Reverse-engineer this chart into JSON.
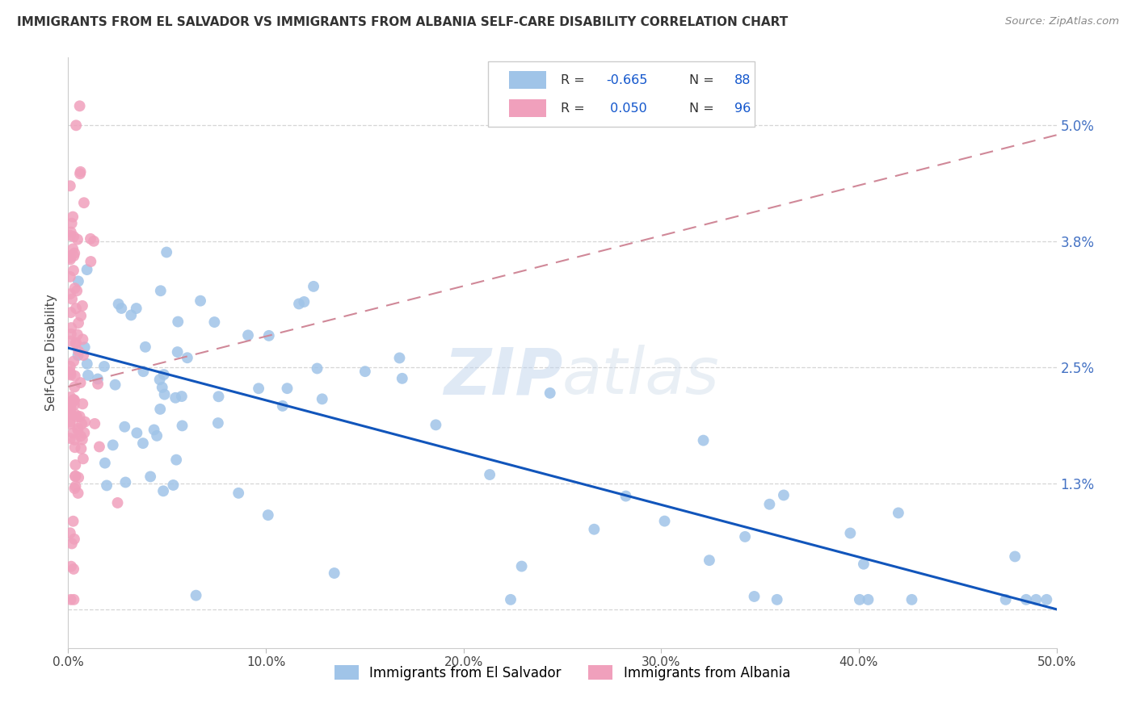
{
  "title": "IMMIGRANTS FROM EL SALVADOR VS IMMIGRANTS FROM ALBANIA SELF-CARE DISABILITY CORRELATION CHART",
  "source": "Source: ZipAtlas.com",
  "ylabel": "Self-Care Disability",
  "xlim": [
    0.0,
    0.5
  ],
  "ylim": [
    -0.004,
    0.057
  ],
  "ytick_vals": [
    0.0,
    0.013,
    0.025,
    0.038,
    0.05
  ],
  "ytick_labels_right": [
    "",
    "1.3%",
    "2.5%",
    "3.8%",
    "5.0%"
  ],
  "xtick_vals": [
    0.0,
    0.1,
    0.2,
    0.3,
    0.4,
    0.5
  ],
  "xtick_labels": [
    "0.0%",
    "10.0%",
    "20.0%",
    "30.0%",
    "40.0%",
    "50.0%"
  ],
  "color_blue": "#A0C4E8",
  "color_pink": "#F0A0BC",
  "line_blue": "#1155BB",
  "line_pink": "#D08898",
  "r_blue": -0.665,
  "n_blue": 88,
  "r_pink": 0.05,
  "n_pink": 96,
  "blue_intercept": 0.027,
  "blue_slope": -0.054,
  "pink_intercept": 0.023,
  "pink_slope": 0.052,
  "seed": 17
}
